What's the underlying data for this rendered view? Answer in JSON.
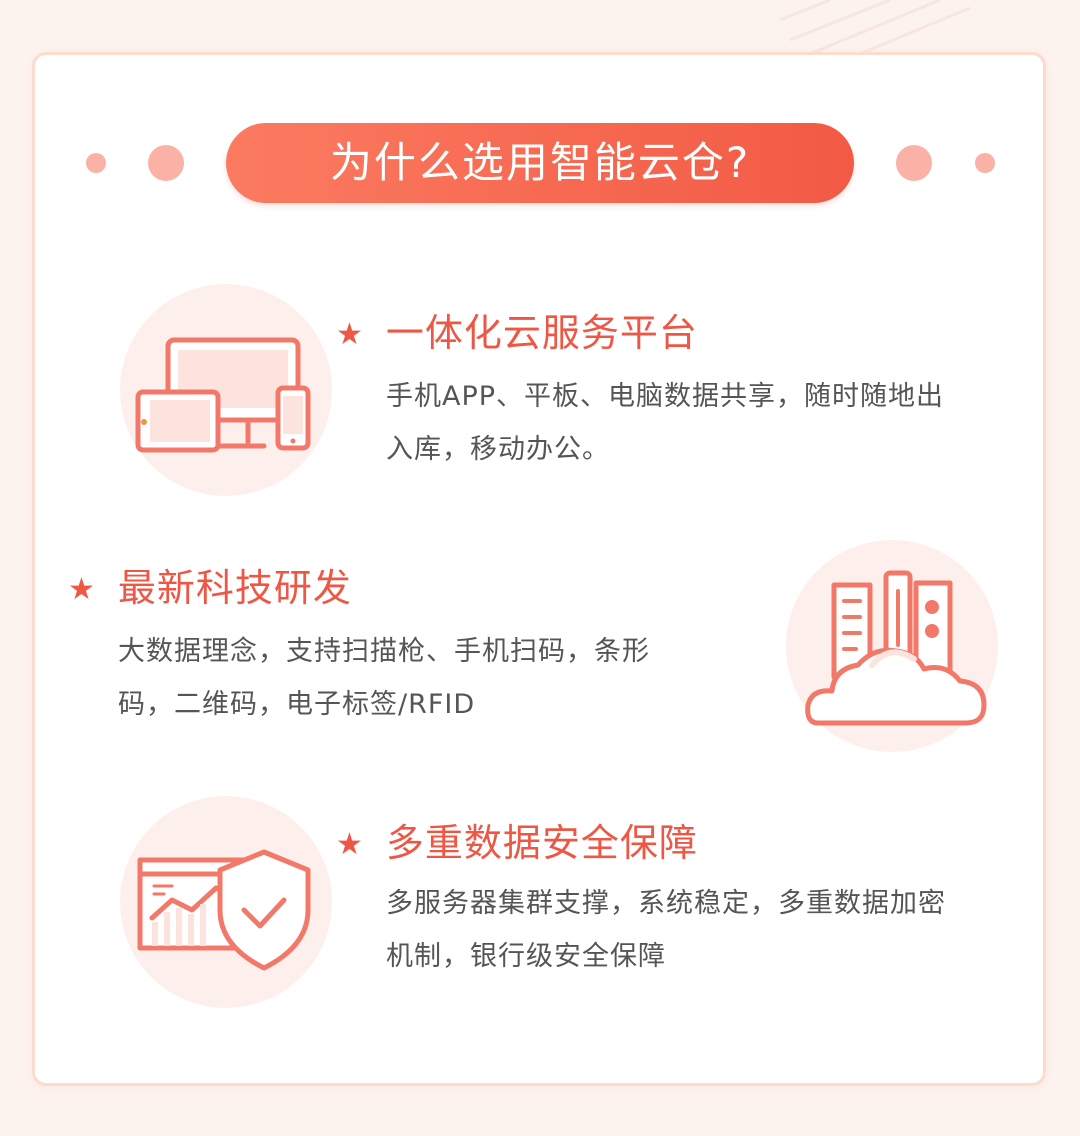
{
  "header": {
    "title": "为什么选用智能云仓?"
  },
  "features": [
    {
      "star": "★",
      "title": "一体化云服务平台",
      "desc_lines": [
        "手机APP、平板、电脑数据共享，随时随地出",
        "入库，移动办公。"
      ],
      "icon": "multi-device-icon"
    },
    {
      "star": "★",
      "title": "最新科技研发",
      "desc_lines": [
        "大数据理念，支持扫描枪、手机扫码，条形",
        "码，二维码，电子标签/RFID"
      ],
      "icon": "cloud-city-icon"
    },
    {
      "star": "★",
      "title": "多重数据安全保障",
      "desc_lines": [
        "多服务器集群支撑，系统稳定，多重数据加密",
        "机制，银行级安全保障"
      ],
      "icon": "shield-check-icon"
    }
  ],
  "colors": {
    "accent": "#ef5745",
    "pill_start": "#fb7b60",
    "pill_end": "#f25a45",
    "icon_stroke": "#f2796a",
    "icon_fill": "#fde3dd"
  }
}
